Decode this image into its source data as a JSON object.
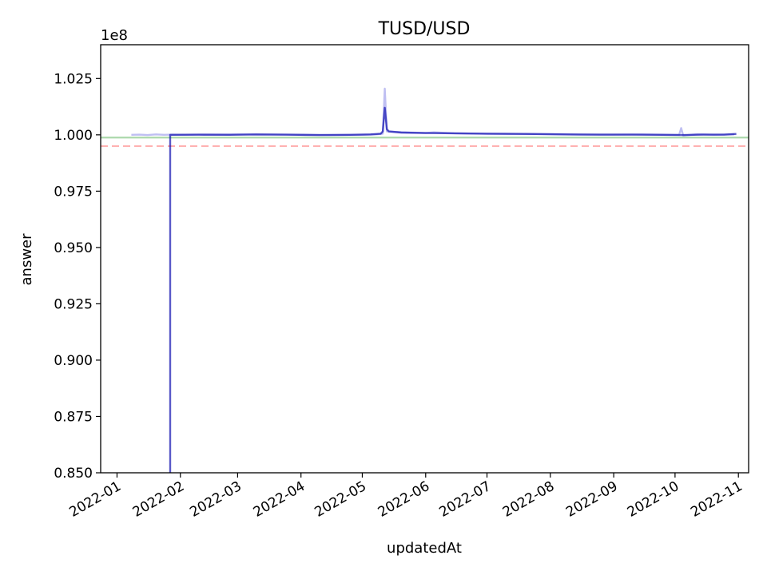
{
  "chart_data": {
    "type": "line",
    "title": "TUSD/USD",
    "xlabel": "updatedAt",
    "ylabel": "answer",
    "offset_label": "1e8",
    "ylim": [
      0.85,
      1.04
    ],
    "xlim": [
      "2021-12-24",
      "2022-11-06"
    ],
    "x_ticks": [
      "2022-01-01",
      "2022-02-01",
      "2022-03-01",
      "2022-04-01",
      "2022-05-01",
      "2022-06-01",
      "2022-07-01",
      "2022-08-01",
      "2022-09-01",
      "2022-10-01",
      "2022-11-01"
    ],
    "x_tick_labels": [
      "2022-01",
      "2022-02",
      "2022-03",
      "2022-04",
      "2022-05",
      "2022-06",
      "2022-07",
      "2022-08",
      "2022-09",
      "2022-10",
      "2022-11"
    ],
    "y_ticks": [
      0.85,
      0.875,
      0.9,
      0.925,
      0.95,
      0.975,
      1.0,
      1.025
    ],
    "y_tick_labels": [
      "0.850",
      "0.875",
      "0.900",
      "0.925",
      "0.950",
      "0.975",
      "1.000",
      "1.025"
    ],
    "grid": false,
    "legend": false,
    "hlines": [
      {
        "y": 0.9988,
        "color": "#2ca02c",
        "style": "solid",
        "opacity": 0.4
      },
      {
        "y": 0.995,
        "color": "#ff0000",
        "style": "dashed",
        "opacity": 0.3
      }
    ],
    "series": [
      {
        "color": "#0000cc",
        "opacity": 0.25,
        "points": [
          [
            "2022-01-08",
            1.0
          ],
          [
            "2022-01-12",
            1.0001
          ],
          [
            "2022-01-16",
            0.9999
          ],
          [
            "2022-01-20",
            1.0002
          ],
          [
            "2022-01-24",
            1.0
          ],
          [
            "2022-01-28",
            1.0001
          ],
          [
            "2022-02-03",
            1.0
          ],
          [
            "2022-02-15",
            1.0001
          ],
          [
            "2022-03-01",
            1.0002
          ],
          [
            "2022-03-15",
            1.0001
          ],
          [
            "2022-04-01",
            1.0
          ],
          [
            "2022-04-15",
            0.9999
          ],
          [
            "2022-05-01",
            1.0
          ],
          [
            "2022-05-08",
            1.0002
          ],
          [
            "2022-05-11",
            1.0005
          ],
          [
            "2022-05-12",
            1.0205
          ],
          [
            "2022-05-13",
            1.0015
          ],
          [
            "2022-05-20",
            1.0012
          ],
          [
            "2022-06-01",
            1.0008
          ],
          [
            "2022-06-05",
            1.0011
          ],
          [
            "2022-06-15",
            1.0007
          ],
          [
            "2022-07-01",
            1.0005
          ],
          [
            "2022-07-15",
            1.0004
          ],
          [
            "2022-08-01",
            1.0003
          ],
          [
            "2022-08-15",
            1.0001
          ],
          [
            "2022-09-01",
            1.0001
          ],
          [
            "2022-09-15",
            1.0002
          ],
          [
            "2022-10-01",
            1.0
          ],
          [
            "2022-10-03",
            1.0
          ],
          [
            "2022-10-04",
            1.003
          ],
          [
            "2022-10-05",
            0.9997
          ],
          [
            "2022-10-12",
            1.0003
          ],
          [
            "2022-10-20",
            1.0
          ],
          [
            "2022-10-30",
            1.0002
          ]
        ]
      },
      {
        "color": "#0000aa",
        "opacity": 0.65,
        "points": [
          [
            "2022-01-27",
            0.85
          ],
          [
            "2022-01-27",
            1.0
          ],
          [
            "2022-02-10",
            1.0001
          ],
          [
            "2022-02-25",
            1.0
          ],
          [
            "2022-03-10",
            1.0002
          ],
          [
            "2022-03-25",
            1.0001
          ],
          [
            "2022-04-10",
            0.9999
          ],
          [
            "2022-04-25",
            1.0
          ],
          [
            "2022-05-05",
            1.0002
          ],
          [
            "2022-05-10",
            1.0005
          ],
          [
            "2022-05-11",
            1.0015
          ],
          [
            "2022-05-12",
            1.012
          ],
          [
            "2022-05-13",
            1.0025
          ],
          [
            "2022-05-14",
            1.0015
          ],
          [
            "2022-05-20",
            1.001
          ],
          [
            "2022-06-01",
            1.0008
          ],
          [
            "2022-06-15",
            1.0007
          ],
          [
            "2022-07-01",
            1.0005
          ],
          [
            "2022-07-20",
            1.0004
          ],
          [
            "2022-08-10",
            1.0002
          ],
          [
            "2022-08-25",
            1.0001
          ],
          [
            "2022-09-10",
            1.0001
          ],
          [
            "2022-09-25",
            1.0
          ],
          [
            "2022-10-05",
            0.9999
          ],
          [
            "2022-10-15",
            1.0001
          ],
          [
            "2022-10-25",
            1.0001
          ],
          [
            "2022-10-31",
            1.0004
          ]
        ]
      }
    ]
  }
}
